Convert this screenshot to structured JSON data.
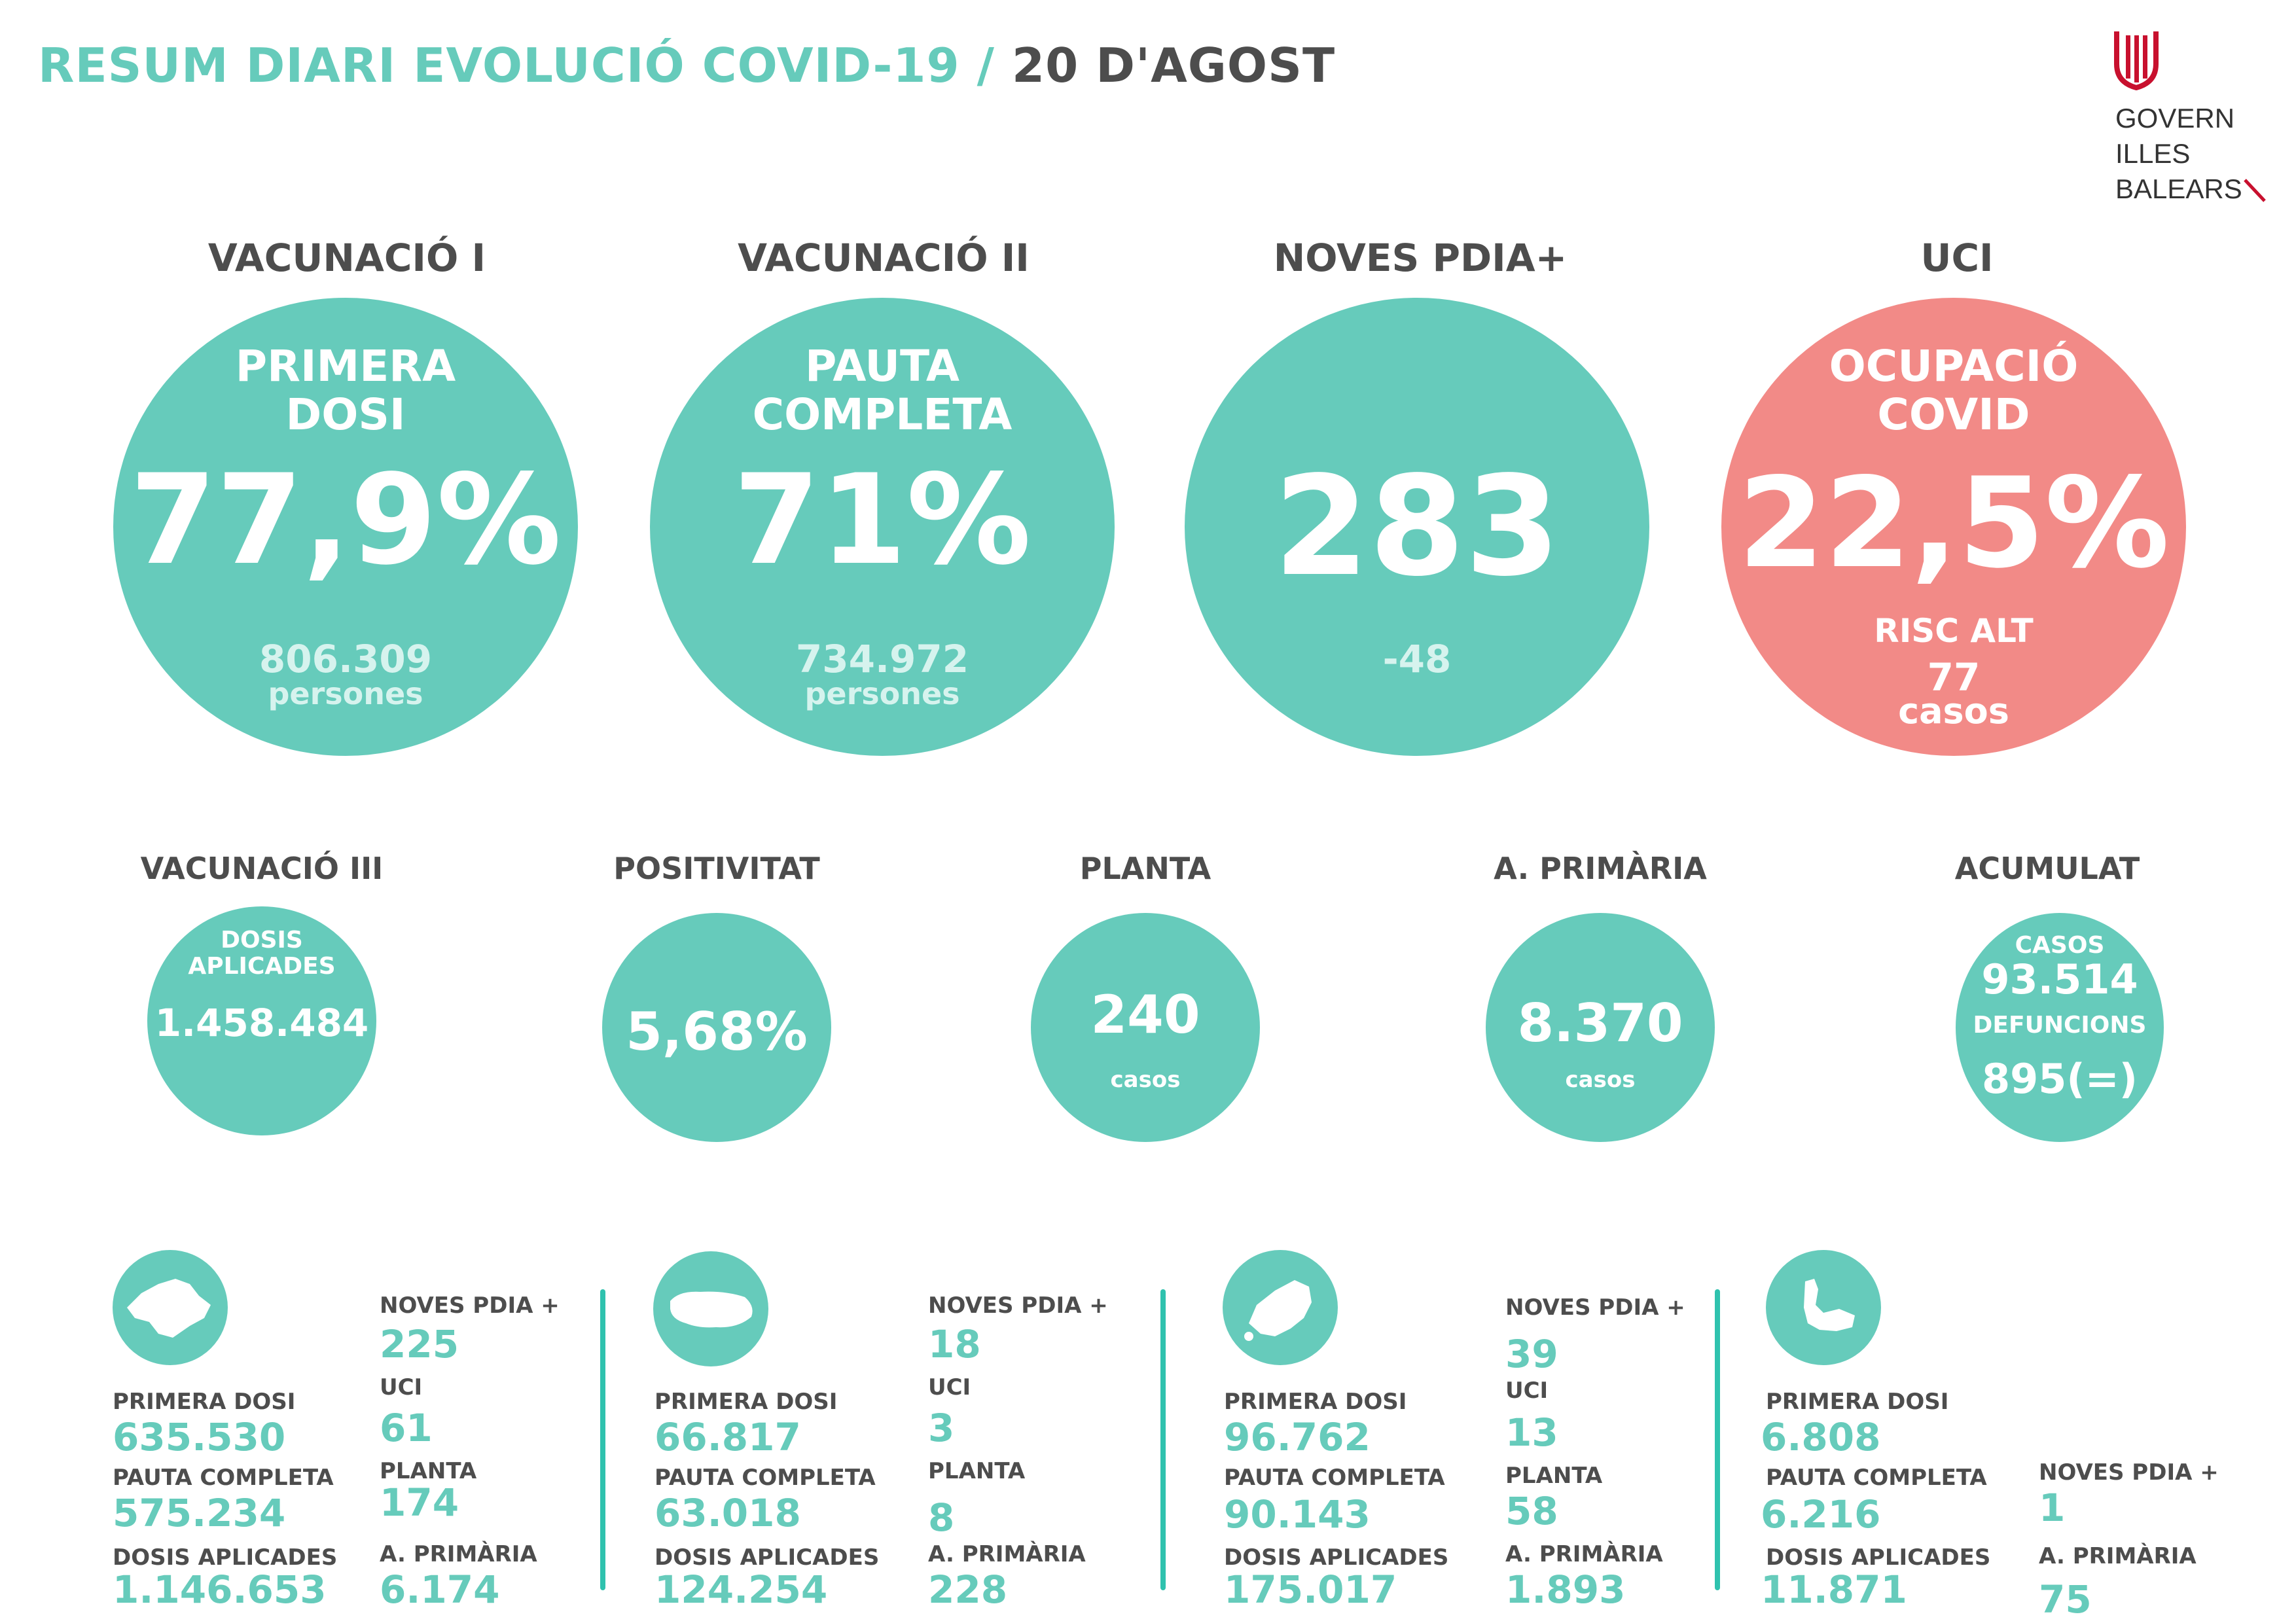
{
  "header": {
    "title_main": "RESUM DIARI EVOLUCIÓ COVID-19",
    "title_sep": " / ",
    "title_date": "20 D'AGOST"
  },
  "logo": {
    "line1": "GOVERN",
    "line2": "ILLES",
    "line3": "BALEARS",
    "icon": "govern-illes-balears-emblem-icon"
  },
  "colors": {
    "teal": "#66cbbb",
    "red": "#f28a87",
    "dark_text": "#4d4d4d",
    "bar": "#2fc2ae"
  },
  "big": [
    {
      "heading": "VACUNACIÓ I",
      "line1": "PRIMERA",
      "line2": "DOSI",
      "value": "77,9%",
      "sub1": "806.309",
      "sub2": "persones"
    },
    {
      "heading": "VACUNACIÓ II",
      "line1": "PAUTA",
      "line2": "COMPLETA",
      "value": "71%",
      "sub1": "734.972",
      "sub2": "persones"
    },
    {
      "heading": "NOVES PDIA+",
      "value": "283",
      "sub1": "-48"
    },
    {
      "heading": "UCI",
      "line1": "OCUPACIÓ",
      "line2": "COVID",
      "value": "22,5%",
      "risk": "RISC ALT",
      "sub1": "77",
      "sub2": "casos"
    }
  ],
  "small": [
    {
      "heading": "VACUNACIÓ III",
      "line1": "DOSIS",
      "line2": "APLICADES",
      "value": "1.458.484"
    },
    {
      "heading": "POSITIVITAT",
      "value": "5,68%"
    },
    {
      "heading": "PLANTA",
      "value": "240",
      "sub": "casos"
    },
    {
      "heading": "A. PRIMÀRIA",
      "value": "8.370",
      "sub": "casos"
    },
    {
      "heading": "ACUMULAT",
      "l1": "CASOS",
      "v1": "93.514",
      "l2": "DEFUNCIONS",
      "v2": "895(=)"
    }
  ],
  "islands": [
    {
      "icon": "mallorca-map-icon",
      "primera_label": "PRIMERA DOSI",
      "primera": "635.530",
      "pauta_label": "PAUTA COMPLETA",
      "pauta": "575.234",
      "dosis_label": "DOSIS APLICADES",
      "dosis": "1.146.653",
      "pdia_label": "NOVES PDIA +",
      "pdia": "225",
      "uci_label": "UCI",
      "uci": "61",
      "planta_label": "PLANTA",
      "planta": "174",
      "ap_label": "A. PRIMÀRIA",
      "ap": "6.174"
    },
    {
      "icon": "menorca-map-icon",
      "primera_label": "PRIMERA DOSI",
      "primera": "66.817",
      "pauta_label": "PAUTA COMPLETA",
      "pauta": "63.018",
      "dosis_label": "DOSIS APLICADES",
      "dosis": "124.254",
      "pdia_label": "NOVES PDIA +",
      "pdia": "18",
      "uci_label": "UCI",
      "uci": "3",
      "planta_label": "PLANTA",
      "planta": "8",
      "ap_label": "A. PRIMÀRIA",
      "ap": "228"
    },
    {
      "icon": "eivissa-map-icon",
      "primera_label": "PRIMERA DOSI",
      "primera": "96.762",
      "pauta_label": "PAUTA COMPLETA",
      "pauta": "90.143",
      "dosis_label": "DOSIS APLICADES",
      "dosis": "175.017",
      "pdia_label": "NOVES PDIA +",
      "pdia": "39",
      "uci_label": "UCI",
      "uci": "13",
      "planta_label": "PLANTA",
      "planta": "58",
      "ap_label": "A. PRIMÀRIA",
      "ap": "1.893"
    },
    {
      "icon": "formentera-map-icon",
      "primera_label": "PRIMERA DOSI",
      "primera": "6.808",
      "pauta_label": "PAUTA COMPLETA",
      "pauta": "6.216",
      "dosis_label": "DOSIS APLICADES",
      "dosis": "11.871",
      "pdia_label": "NOVES PDIA +",
      "pdia": "1",
      "ap_label": "A. PRIMÀRIA",
      "ap": "75"
    }
  ]
}
